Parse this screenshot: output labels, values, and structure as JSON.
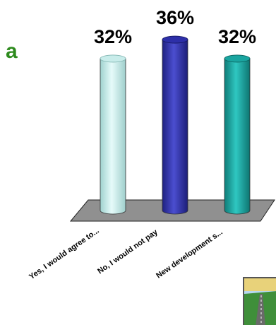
{
  "slide_fragments": {
    "line1": "a",
    "line2": ""
  },
  "chart_data": {
    "type": "bar",
    "style": "3d-cylinder",
    "categories": [
      "Yes, I would agree to...",
      "No, I would not pay",
      "New development s..."
    ],
    "values": [
      32,
      36,
      32
    ],
    "data_labels": [
      "32%",
      "36%",
      "32%"
    ],
    "ylim": [
      0,
      40
    ],
    "grid": false,
    "legend": "none",
    "colors": [
      "#c8ecea",
      "#2d2fa8",
      "#1aa5a0"
    ],
    "floor_color": "#909090"
  },
  "thumbnail": {
    "icon": "road-thumbnail-icon"
  }
}
